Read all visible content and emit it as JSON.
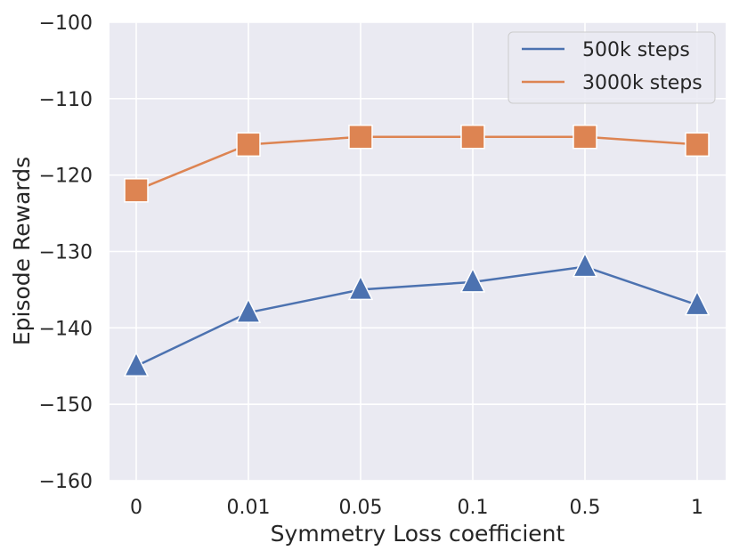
{
  "chart_data": {
    "type": "line",
    "title": "",
    "xlabel": "Symmetry Loss coefficient",
    "ylabel": "Episode Rewards",
    "categories": [
      "0",
      "0.01",
      "0.05",
      "0.1",
      "0.5",
      "1"
    ],
    "ylim": [
      -160,
      -100
    ],
    "yticks": [
      -160,
      -150,
      -140,
      -130,
      -120,
      -110,
      -100
    ],
    "ytick_labels": [
      "−160",
      "−150",
      "−140",
      "−130",
      "−120",
      "−110",
      "−100"
    ],
    "grid": true,
    "legend_position": "top-right",
    "series": [
      {
        "name": "500k steps",
        "color": "#4c72b0",
        "marker": "triangle",
        "values": [
          -145,
          -138,
          -135,
          -134,
          -132,
          -137
        ]
      },
      {
        "name": "3000k steps",
        "color": "#dd8452",
        "marker": "square",
        "values": [
          -122,
          -116,
          -115,
          -115,
          -115,
          -116
        ]
      }
    ]
  }
}
